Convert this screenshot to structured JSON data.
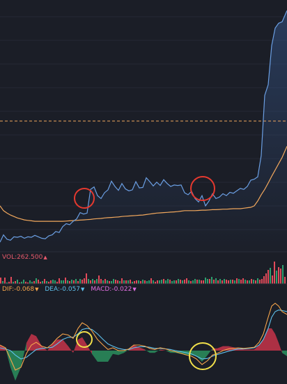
{
  "colors": {
    "background": "#1b1e27",
    "panel_divider": "#2a2e3a",
    "price_line": "#6b9fe3",
    "ma_line": "#f2a85d",
    "ref_dashed": "#f2a85d",
    "vol_up": "#e24b5a",
    "vol_down": "#2e9f6e",
    "dif_line": "#f6a54b",
    "dea_line": "#5fc2ee",
    "macd_pos": "#c6344a",
    "macd_neg": "#2a8f5e",
    "red_circle": "#e5392f",
    "yellow_circle": "#f2e04a",
    "vol_label": "#e85a6c",
    "dif_label": "#f6a54b",
    "dea_label": "#5fc2ee",
    "macd_label": "#e06fe0"
  },
  "indicators": {
    "vol": {
      "label": "VOL:262.500",
      "arrow": "▲"
    },
    "dif": {
      "label": "DIF:-0.068",
      "arrow": "▼"
    },
    "dea": {
      "label": "DEA:-0.057",
      "arrow": "▼"
    },
    "macd": {
      "label": "MACD:-0.022",
      "arrow": "▼"
    }
  },
  "chart_data": [
    {
      "type": "line",
      "x": [
        0,
        5,
        10,
        15,
        20,
        25,
        30,
        35,
        40,
        45,
        50,
        55,
        60,
        65,
        70,
        75,
        80,
        85,
        90,
        95,
        100,
        105,
        110,
        115,
        120,
        125,
        130,
        135,
        140,
        145,
        150,
        155,
        160,
        165,
        170,
        175,
        180,
        185,
        190,
        195,
        200,
        205,
        210,
        215,
        220,
        225,
        230,
        235,
        240,
        245,
        250,
        255,
        260,
        265,
        270,
        275,
        280,
        285,
        290,
        295,
        300,
        305,
        310,
        315,
        320,
        325,
        330,
        335,
        340,
        345,
        350,
        355,
        360,
        365,
        370,
        375,
        380,
        385,
        390,
        395,
        400,
        405,
        412
      ],
      "series": [
        {
          "values": [
            2.0,
            3.5,
            2.6,
            2.4,
            3.1,
            3.0,
            3.2,
            2.8,
            3.1,
            3.0,
            3.4,
            3.1,
            2.8,
            2.7,
            3.3,
            3.5,
            4.2,
            4.0,
            5.2,
            5.8,
            5.6,
            6.3,
            6.8,
            8.1,
            7.8,
            8.0,
            12.9,
            13.4,
            11.6,
            11.0,
            12.2,
            12.8,
            14.6,
            13.5,
            12.7,
            14.1,
            13.0,
            12.6,
            12.8,
            14.5,
            13.2,
            13.3,
            15.3,
            14.5,
            13.6,
            14.4,
            13.7,
            14.9,
            14.1,
            13.5,
            13.8,
            13.7,
            13.8,
            12.2,
            11.8,
            12.5,
            11.0,
            10.3,
            11.6,
            9.5,
            10.5,
            12.0,
            11.0,
            11.3,
            12.0,
            11.6,
            12.3,
            12.1,
            12.6,
            13.1,
            12.9,
            13.5,
            14.8,
            15.0,
            15.5,
            19.9,
            32.3,
            34.5,
            42.6,
            46.2,
            47.2,
            47.5,
            49.8
          ]
        },
        {
          "values": [
            9.5,
            8.5,
            8.0,
            7.6,
            7.3,
            7.0,
            6.8,
            6.6,
            6.5,
            6.4,
            6.3,
            6.3,
            6.3,
            6.3,
            6.3,
            6.3,
            6.3,
            6.3,
            6.3,
            6.35,
            6.4,
            6.45,
            6.5,
            6.55,
            6.6,
            6.65,
            6.7,
            6.8,
            6.85,
            6.9,
            7.0,
            7.05,
            7.1,
            7.15,
            7.2,
            7.3,
            7.35,
            7.4,
            7.45,
            7.5,
            7.55,
            7.6,
            7.7,
            7.8,
            7.9,
            8.0,
            8.05,
            8.1,
            8.15,
            8.2,
            8.25,
            8.3,
            8.4,
            8.5,
            8.5,
            8.5,
            8.5,
            8.55,
            8.6,
            8.6,
            8.65,
            8.7,
            8.7,
            8.75,
            8.8,
            8.8,
            8.85,
            8.9,
            8.9,
            8.9,
            9.0,
            9.1,
            9.2,
            9.5,
            10.5,
            11.8,
            12.9,
            14.2,
            15.6,
            16.9,
            18.2,
            19.5,
            21.8
          ]
        }
      ],
      "ref_line": 27.0,
      "ylim": [
        0,
        52
      ]
    },
    {
      "type": "bar",
      "bar_x": [
        0,
        3,
        6,
        9,
        12,
        15,
        18,
        21,
        24,
        27,
        30,
        33,
        36,
        39,
        42,
        45,
        48,
        51,
        54,
        57,
        60,
        63,
        66,
        69,
        72,
        75,
        78,
        81,
        84,
        87,
        90,
        93,
        96,
        99,
        102,
        105,
        108,
        111,
        114,
        117,
        120,
        123,
        126,
        129,
        132,
        135,
        138,
        141,
        144,
        147,
        150,
        153,
        156,
        159,
        162,
        165,
        168,
        171,
        174,
        177,
        180,
        183,
        186,
        189,
        192,
        195,
        198,
        201,
        204,
        207,
        210,
        213,
        216,
        219,
        222,
        225,
        228,
        231,
        234,
        237,
        240,
        243,
        246,
        249,
        252,
        255,
        258,
        261,
        264,
        267,
        270,
        273,
        276,
        279,
        282,
        285,
        288,
        291,
        294,
        297,
        300,
        303,
        306,
        309,
        312,
        315,
        318,
        321,
        324,
        327,
        330,
        333,
        336,
        339,
        342,
        345,
        348,
        351,
        354,
        357,
        360,
        363,
        366,
        369,
        372,
        375,
        378,
        381,
        384,
        387,
        390,
        393,
        396,
        399,
        402,
        405,
        408
      ],
      "values": [
        9,
        4,
        9,
        2,
        3,
        10,
        3,
        4,
        6,
        2,
        3,
        6,
        3,
        2,
        5,
        3,
        4,
        8,
        6,
        3,
        4,
        7,
        4,
        3,
        5,
        6,
        5,
        3,
        8,
        5,
        5,
        9,
        5,
        4,
        6,
        5,
        7,
        4,
        7,
        6,
        8,
        15,
        7,
        5,
        7,
        5,
        7,
        12,
        7,
        5,
        7,
        5,
        4,
        4,
        7,
        6,
        5,
        4,
        8,
        5,
        5,
        5,
        6,
        3,
        4,
        5,
        5,
        4,
        6,
        5,
        4,
        5,
        8,
        5,
        3,
        5,
        5,
        6,
        7,
        5,
        7,
        6,
        4,
        5,
        5,
        7,
        6,
        5,
        6,
        8,
        5,
        4,
        5,
        7,
        6,
        6,
        5,
        5,
        9,
        7,
        7,
        10,
        6,
        8,
        5,
        7,
        5,
        7,
        6,
        5,
        6,
        6,
        5,
        8,
        7,
        6,
        8,
        6,
        5,
        5,
        7,
        6,
        5,
        8,
        6,
        7,
        11,
        15,
        20,
        23,
        12,
        32,
        19,
        24,
        22,
        27,
        10
      ],
      "up": [
        true,
        false,
        true,
        false,
        true,
        true,
        false,
        true,
        false,
        true,
        false,
        false,
        true,
        true,
        false,
        false,
        true,
        false,
        true,
        true,
        false,
        true,
        false,
        true,
        true,
        false,
        false,
        true,
        true,
        false,
        false,
        true,
        false,
        true,
        false,
        true,
        false,
        true,
        false,
        true,
        true,
        true,
        false,
        true,
        false,
        true,
        false,
        true,
        true,
        false,
        true,
        false,
        true,
        false,
        false,
        true,
        true,
        false,
        true,
        false,
        true,
        false,
        true,
        false,
        true,
        true,
        false,
        true,
        false,
        true,
        false,
        false,
        true,
        false,
        true,
        true,
        false,
        false,
        true,
        false,
        false,
        true,
        false,
        false,
        true,
        false,
        true,
        false,
        true,
        true,
        false,
        true,
        false,
        false,
        true,
        false,
        true,
        true,
        false,
        false,
        true,
        false,
        true,
        false,
        true,
        false,
        true,
        false,
        true,
        true,
        false,
        true,
        false,
        true,
        false,
        true,
        true,
        false,
        true,
        false,
        true,
        false,
        true,
        false,
        true,
        true,
        true,
        true,
        true,
        false,
        true,
        true,
        false,
        true,
        true,
        false,
        true
      ],
      "ylim": [
        0,
        33
      ]
    },
    {
      "type": "line",
      "x": [
        0,
        8,
        15,
        22,
        30,
        38,
        45,
        52,
        60,
        68,
        75,
        82,
        90,
        98,
        105,
        112,
        118,
        125,
        132,
        140,
        148,
        155,
        162,
        170,
        178,
        185,
        192,
        200,
        208,
        215,
        222,
        230,
        238,
        245,
        252,
        260,
        268,
        275,
        282,
        290,
        298,
        305,
        312,
        320,
        328,
        335,
        342,
        350,
        358,
        365,
        372,
        378,
        385,
        390,
        395,
        400,
        405,
        412
      ],
      "series": [
        {
          "name": "DIF",
          "values": [
            0.01,
            0.005,
            -0.015,
            -0.035,
            -0.03,
            -0.005,
            0.01,
            0.015,
            0.008,
            0.005,
            0.012,
            0.022,
            0.03,
            0.028,
            0.022,
            0.04,
            0.05,
            0.045,
            0.035,
            0.02,
            0.01,
            0.002,
            0.005,
            0.0,
            0.0,
            0.003,
            0.01,
            0.01,
            0.008,
            0.004,
            0.002,
            0.005,
            0.003,
            0.0,
            -0.002,
            -0.005,
            -0.008,
            -0.01,
            -0.015,
            -0.025,
            -0.018,
            -0.008,
            -0.005,
            0.0,
            0.003,
            0.004,
            0.005,
            0.004,
            0.005,
            0.006,
            0.015,
            0.03,
            0.06,
            0.08,
            0.085,
            0.08,
            0.07,
            0.065
          ]
        },
        {
          "name": "DEA",
          "values": [
            0.005,
            0.003,
            0.0,
            -0.008,
            -0.015,
            -0.012,
            -0.005,
            0.002,
            0.004,
            0.005,
            0.006,
            0.012,
            0.02,
            0.024,
            0.024,
            0.03,
            0.038,
            0.04,
            0.038,
            0.03,
            0.02,
            0.012,
            0.008,
            0.004,
            0.002,
            0.002,
            0.005,
            0.007,
            0.007,
            0.006,
            0.004,
            0.004,
            0.003,
            0.002,
            0.0,
            -0.002,
            -0.004,
            -0.006,
            -0.01,
            -0.015,
            -0.014,
            -0.01,
            -0.007,
            -0.004,
            -0.001,
            0.001,
            0.003,
            0.003,
            0.004,
            0.005,
            0.01,
            0.02,
            0.04,
            0.06,
            0.07,
            0.073,
            0.072,
            0.07
          ]
        }
      ],
      "macd_hist": [
        0.01,
        0.004,
        -0.03,
        -0.054,
        -0.03,
        0.014,
        0.03,
        0.026,
        0.008,
        0.0,
        0.012,
        0.02,
        0.02,
        0.008,
        -0.004,
        0.02,
        0.024,
        0.01,
        -0.006,
        -0.02,
        -0.02,
        -0.02,
        -0.006,
        -0.008,
        -0.004,
        0.002,
        0.01,
        0.006,
        0.002,
        -0.004,
        -0.004,
        0.002,
        0.0,
        -0.004,
        -0.004,
        -0.006,
        -0.008,
        -0.008,
        -0.01,
        -0.02,
        -0.008,
        0.004,
        0.004,
        0.008,
        0.008,
        0.006,
        0.004,
        0.002,
        0.002,
        0.002,
        0.01,
        0.02,
        0.04,
        0.04,
        0.03,
        0.014,
        -0.004,
        -0.01
      ],
      "ylim": [
        -0.06,
        0.1
      ]
    }
  ]
}
